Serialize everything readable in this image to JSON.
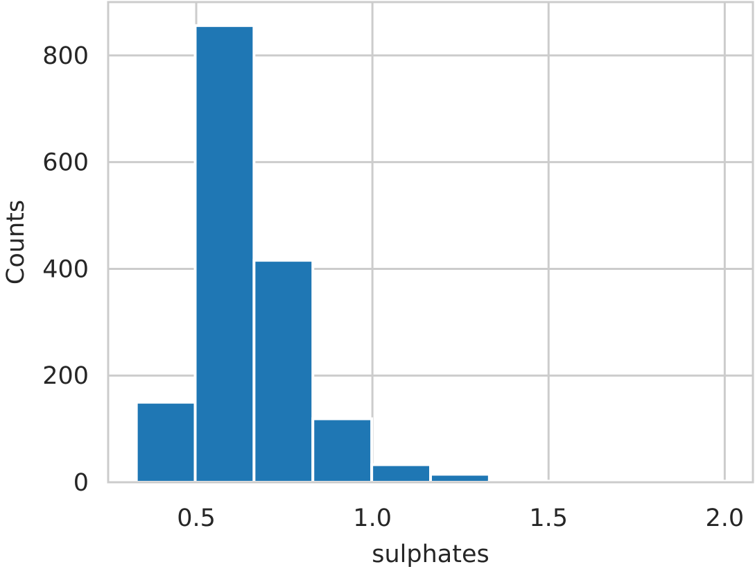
{
  "chart_data": {
    "type": "bar",
    "title": "",
    "xlabel": "sulphates",
    "ylabel": "Counts",
    "bin_edges": [
      0.33,
      0.497,
      0.664,
      0.831,
      0.998,
      1.165,
      1.332,
      1.499,
      1.666,
      1.833,
      2.0
    ],
    "values": [
      150,
      856,
      416,
      119,
      33,
      15,
      2,
      2,
      1,
      2
    ],
    "xlim": [
      0.25,
      2.08
    ],
    "ylim": [
      0,
      900
    ],
    "xticks": [
      0.5,
      1.0,
      1.5,
      2.0
    ],
    "xtick_labels": [
      "0.5",
      "1.0",
      "1.5",
      "2.0"
    ],
    "yticks": [
      0,
      200,
      400,
      600,
      800
    ],
    "ytick_labels": [
      "0",
      "200",
      "400",
      "600",
      "800"
    ],
    "grid": true,
    "legend": "none",
    "bar_color": "#1f77b4",
    "grid_color": "#cccccc",
    "text_color": "#262626"
  }
}
